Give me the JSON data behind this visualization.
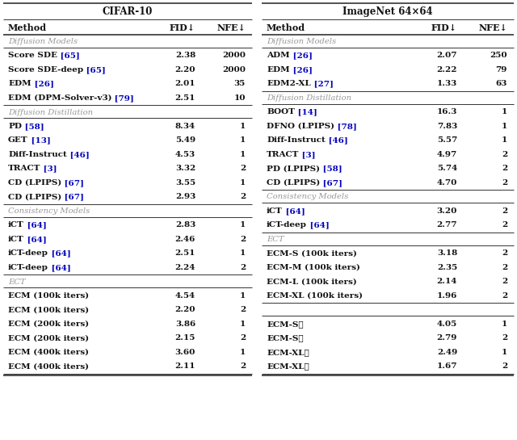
{
  "left_title": "CIFAR-10",
  "right_title": "ImageNet 64×64",
  "left_sections": [
    {
      "section_label": "Diffusion Models",
      "rows": [
        {
          "method": "Score SDE",
          "ref": "65",
          "fid": "2.38",
          "nfe": "2000"
        },
        {
          "method": "Score SDE-deep",
          "ref": "65",
          "fid": "2.20",
          "nfe": "2000"
        },
        {
          "method": "EDM",
          "ref": "26",
          "fid": "2.01",
          "nfe": "35"
        },
        {
          "method": "EDM (DPM-Solver-v3)",
          "ref": "79",
          "fid": "2.51",
          "nfe": "10"
        }
      ]
    },
    {
      "section_label": "Diffusion Distillation",
      "rows": [
        {
          "method": "PD",
          "ref": "58",
          "fid": "8.34",
          "nfe": "1"
        },
        {
          "method": "GET",
          "ref": "13",
          "fid": "5.49",
          "nfe": "1"
        },
        {
          "method": "Diff-Instruct",
          "ref": "46",
          "fid": "4.53",
          "nfe": "1"
        },
        {
          "method": "TRACT",
          "ref": "3",
          "fid": "3.32",
          "nfe": "2"
        },
        {
          "method": "CD (LPIPS)",
          "ref": "67",
          "fid": "3.55",
          "nfe": "1"
        },
        {
          "method": "CD (LPIPS)",
          "ref": "67",
          "fid": "2.93",
          "nfe": "2"
        }
      ]
    },
    {
      "section_label": "Consistency Models",
      "rows": [
        {
          "method": "iCT",
          "ref": "64",
          "fid": "2.83",
          "nfe": "1"
        },
        {
          "method": "iCT",
          "ref": "64",
          "fid": "2.46",
          "nfe": "2"
        },
        {
          "method": "iCT-deep",
          "ref": "64",
          "fid": "2.51",
          "nfe": "1"
        },
        {
          "method": "iCT-deep",
          "ref": "64",
          "fid": "2.24",
          "nfe": "2"
        }
      ]
    },
    {
      "section_label": "ECT",
      "rows": [
        {
          "method": "ECM (100k iters)",
          "ref": "",
          "fid": "4.54",
          "nfe": "1"
        },
        {
          "method": "ECM (100k iters)",
          "ref": "",
          "fid": "2.20",
          "nfe": "2"
        },
        {
          "method": "ECM (200k iters)",
          "ref": "",
          "fid": "3.86",
          "nfe": "1"
        },
        {
          "method": "ECM (200k iters)",
          "ref": "",
          "fid": "2.15",
          "nfe": "2"
        },
        {
          "method": "ECM (400k iters)",
          "ref": "",
          "fid": "3.60",
          "nfe": "1"
        },
        {
          "method": "ECM (400k iters)",
          "ref": "",
          "fid": "2.11",
          "nfe": "2"
        }
      ]
    }
  ],
  "right_sections": [
    {
      "section_label": "Diffusion Models",
      "rows": [
        {
          "method": "ADM",
          "ref": "26",
          "fid": "2.07",
          "nfe": "250"
        },
        {
          "method": "EDM",
          "ref": "26",
          "fid": "2.22",
          "nfe": "79"
        },
        {
          "method": "EDM2-XL",
          "ref": "27",
          "fid": "1.33",
          "nfe": "63"
        }
      ]
    },
    {
      "section_label": "Diffusion Distillation",
      "rows": [
        {
          "method": "BOOT",
          "ref": "14",
          "fid": "16.3",
          "nfe": "1"
        },
        {
          "method": "DFNO (LPIPS)",
          "ref": "78",
          "fid": "7.83",
          "nfe": "1"
        },
        {
          "method": "Diff-Instruct",
          "ref": "46",
          "fid": "5.57",
          "nfe": "1"
        },
        {
          "method": "TRACT",
          "ref": "3",
          "fid": "4.97",
          "nfe": "2"
        },
        {
          "method": "PD (LPIPS)",
          "ref": "58",
          "fid": "5.74",
          "nfe": "2"
        },
        {
          "method": "CD (LPIPS)",
          "ref": "67",
          "fid": "4.70",
          "nfe": "2"
        }
      ]
    },
    {
      "section_label": "Consistency Models",
      "rows": [
        {
          "method": "iCT",
          "ref": "64",
          "fid": "3.20",
          "nfe": "2"
        },
        {
          "method": "iCT-deep",
          "ref": "64",
          "fid": "2.77",
          "nfe": "2"
        }
      ]
    },
    {
      "section_label": "ECT",
      "rows": [
        {
          "method": "ECM-S (100k iters)",
          "ref": "",
          "fid": "3.18",
          "nfe": "2"
        },
        {
          "method": "ECM-M (100k iters)",
          "ref": "",
          "fid": "2.35",
          "nfe": "2"
        },
        {
          "method": "ECM-L (100k iters)",
          "ref": "",
          "fid": "2.14",
          "nfe": "2"
        },
        {
          "method": "ECM-XL (100k iters)",
          "ref": "",
          "fid": "1.96",
          "nfe": "2"
        }
      ]
    },
    {
      "section_label": "",
      "rows": [
        {
          "method": "ECM-S⋆",
          "ref": "",
          "fid": "4.05",
          "nfe": "1"
        },
        {
          "method": "ECM-S⋆",
          "ref": "",
          "fid": "2.79",
          "nfe": "2"
        },
        {
          "method": "ECM-XL⋆",
          "ref": "",
          "fid": "2.49",
          "nfe": "1"
        },
        {
          "method": "ECM-XL⋆",
          "ref": "",
          "fid": "1.67",
          "nfe": "2"
        }
      ]
    }
  ],
  "ref_color": "#0000BB",
  "section_color": "#999999",
  "text_color": "#111111",
  "bg_color": "#FFFFFF",
  "line_color": "#333333",
  "title_fontsize": 8.5,
  "header_fontsize": 8.0,
  "row_fontsize": 7.5,
  "section_fontsize": 7.2
}
